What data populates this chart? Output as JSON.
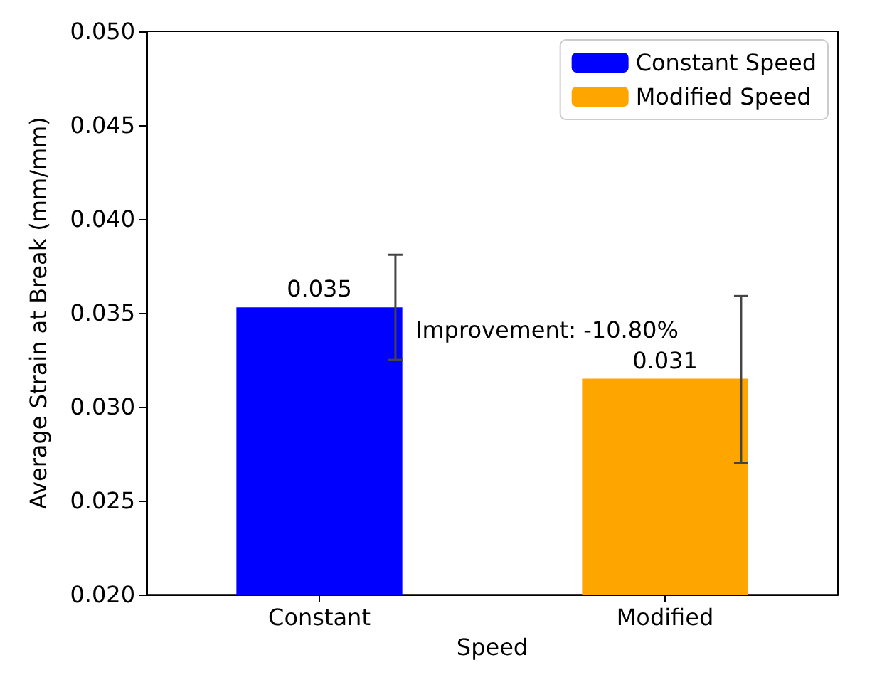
{
  "chart_data": {
    "type": "bar",
    "xlabel": "Speed",
    "ylabel": "Average Strain at Break (mm/mm)",
    "categories": [
      "Constant",
      "Modified"
    ],
    "series": [
      {
        "name": "Constant Speed",
        "color": "#0000ff",
        "values": [
          0.0353,
          null
        ],
        "errors": [
          [
            0.0325,
            0.0381
          ],
          null
        ],
        "value_labels": [
          "0.035",
          null
        ]
      },
      {
        "name": "Modified Speed",
        "color": "#ffa500",
        "values": [
          null,
          0.0315
        ],
        "errors": [
          null,
          [
            0.027,
            0.0359
          ]
        ],
        "value_labels": [
          null,
          "0.031"
        ]
      }
    ],
    "ylim": [
      0.02,
      0.05
    ],
    "yticks": [
      {
        "value": 0.02,
        "label": "0.020"
      },
      0.025,
      {
        "value": 0.03,
        "label": "0.030"
      },
      0.035,
      {
        "value": 0.04,
        "label": "0.040"
      },
      0.045,
      {
        "value": 0.05,
        "label": "0.050"
      }
    ],
    "annotations": [
      "Improvement: -10.80%"
    ],
    "legend": "top right",
    "grid": false
  }
}
